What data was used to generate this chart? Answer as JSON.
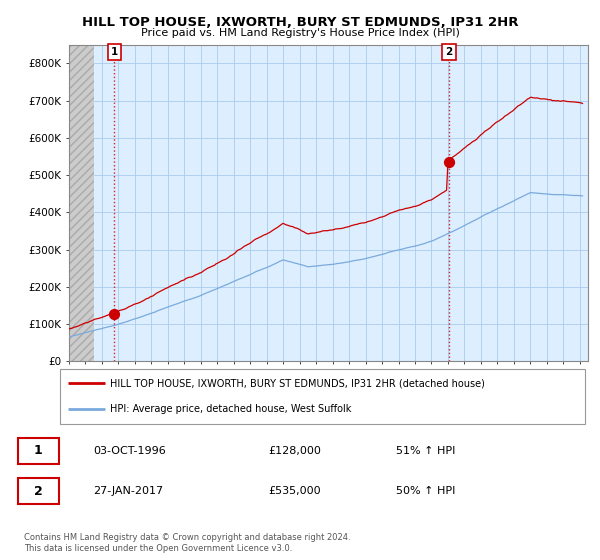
{
  "title": "HILL TOP HOUSE, IXWORTH, BURY ST EDMUNDS, IP31 2HR",
  "subtitle": "Price paid vs. HM Land Registry's House Price Index (HPI)",
  "xlim": [
    1994.0,
    2025.5
  ],
  "ylim": [
    0,
    850000
  ],
  "yticks": [
    0,
    100000,
    200000,
    300000,
    400000,
    500000,
    600000,
    700000,
    800000
  ],
  "ytick_labels": [
    "£0",
    "£100K",
    "£200K",
    "£300K",
    "£400K",
    "£500K",
    "£600K",
    "£700K",
    "£800K"
  ],
  "xticks": [
    1994,
    1995,
    1996,
    1997,
    1998,
    1999,
    2000,
    2001,
    2002,
    2003,
    2004,
    2005,
    2006,
    2007,
    2008,
    2009,
    2010,
    2011,
    2012,
    2013,
    2014,
    2015,
    2016,
    2017,
    2018,
    2019,
    2020,
    2021,
    2022,
    2023,
    2024,
    2025
  ],
  "sale1_x": 1996.75,
  "sale1_y": 128000,
  "sale2_x": 2017.07,
  "sale2_y": 535000,
  "legend_line1": "HILL TOP HOUSE, IXWORTH, BURY ST EDMUNDS, IP31 2HR (detached house)",
  "legend_line2": "HPI: Average price, detached house, West Suffolk",
  "footer": "Contains HM Land Registry data © Crown copyright and database right 2024.\nThis data is licensed under the Open Government Licence v3.0.",
  "hpi_color": "#7aaadd",
  "sale_color": "#cc0000",
  "bg_color": "#ddeeff",
  "hatch_color": "#bbbbbb",
  "grid_color": "#aaccee",
  "border_color": "#aaaaaa"
}
